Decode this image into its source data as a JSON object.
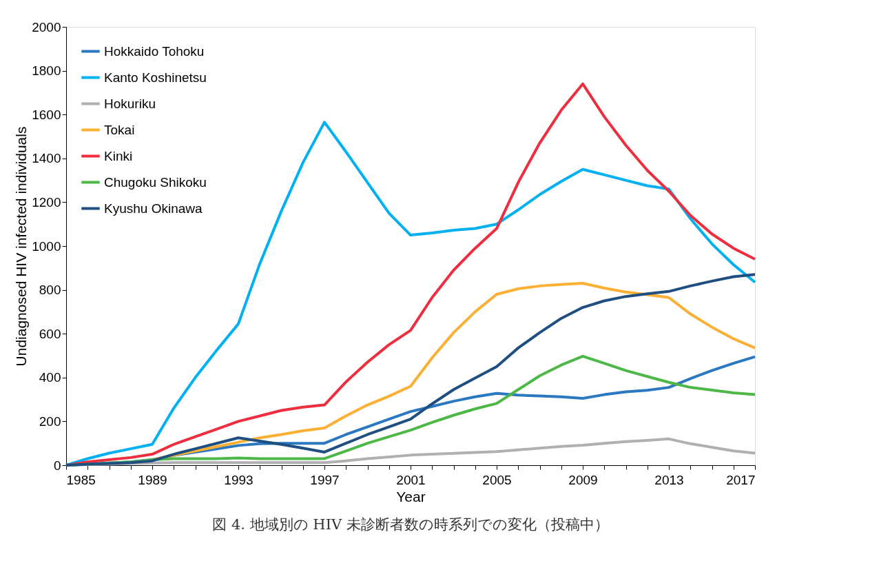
{
  "chart_data": {
    "type": "line",
    "xlabel": "Year",
    "ylabel": "Undiagnosed  HIV infected individuals",
    "annotations": [
      "図 4.  地域別の HIV 未診断者数の時系列での変化（投稿中）"
    ],
    "x": [
      1985,
      1986,
      1987,
      1988,
      1989,
      1990,
      1991,
      1992,
      1993,
      1994,
      1995,
      1996,
      1997,
      1998,
      1999,
      2000,
      2001,
      2002,
      2003,
      2004,
      2005,
      2006,
      2007,
      2008,
      2009,
      2010,
      2011,
      2012,
      2013,
      2014,
      2015,
      2016,
      2017
    ],
    "series": [
      {
        "name": "Hokkaido Tohoku",
        "color": "#2a78c0",
        "values": [
          0,
          5,
          10,
          15,
          25,
          45,
          60,
          75,
          90,
          98,
          100,
          100,
          100,
          140,
          175,
          210,
          245,
          268,
          292,
          312,
          328,
          320,
          316,
          312,
          305,
          322,
          335,
          342,
          355,
          395,
          432,
          465,
          495
        ]
      },
      {
        "name": "Kanto Koshinetsu",
        "color": "#00b0f0",
        "values": [
          0,
          30,
          55,
          75,
          95,
          260,
          400,
          525,
          645,
          920,
          1160,
          1380,
          1565,
          1430,
          1290,
          1150,
          1050,
          1060,
          1072,
          1080,
          1100,
          1165,
          1235,
          1295,
          1350,
          1325,
          1300,
          1275,
          1260,
          1125,
          1010,
          915,
          835
        ]
      },
      {
        "name": "Hokuriku",
        "color": "#b0b0b4",
        "values": [
          0,
          3,
          5,
          8,
          10,
          12,
          12,
          12,
          12,
          12,
          12,
          12,
          12,
          20,
          30,
          38,
          46,
          50,
          54,
          58,
          62,
          70,
          78,
          86,
          91,
          100,
          108,
          113,
          120,
          98,
          82,
          65,
          55
        ]
      },
      {
        "name": "Tokai",
        "color": "#fbb034",
        "values": [
          null,
          null,
          null,
          null,
          25,
          45,
          65,
          85,
          105,
          125,
          140,
          157,
          170,
          225,
          275,
          315,
          360,
          490,
          605,
          700,
          780,
          805,
          818,
          825,
          830,
          808,
          790,
          778,
          765,
          690,
          630,
          577,
          535
        ]
      },
      {
        "name": "Kinki",
        "color": "#ee2e3f",
        "values": [
          0,
          15,
          25,
          35,
          50,
          95,
          130,
          165,
          200,
          225,
          250,
          265,
          275,
          380,
          470,
          550,
          615,
          765,
          890,
          990,
          1080,
          1290,
          1470,
          1620,
          1740,
          1590,
          1460,
          1345,
          1250,
          1140,
          1055,
          990,
          940
        ]
      },
      {
        "name": "Chugoku Shikoku",
        "color": "#4db848",
        "values": [
          0,
          5,
          10,
          15,
          25,
          30,
          30,
          30,
          33,
          30,
          30,
          30,
          30,
          65,
          100,
          130,
          160,
          195,
          228,
          257,
          282,
          345,
          408,
          457,
          497,
          465,
          432,
          405,
          378,
          355,
          343,
          330,
          322
        ]
      },
      {
        "name": "Kyushu Okinawa",
        "color": "#1f4e80",
        "values": [
          0,
          5,
          8,
          12,
          20,
          50,
          75,
          100,
          125,
          110,
          95,
          78,
          60,
          100,
          140,
          175,
          210,
          280,
          345,
          398,
          450,
          535,
          605,
          670,
          720,
          750,
          770,
          782,
          793,
          818,
          840,
          860,
          870
        ]
      }
    ],
    "xlim": [
      1985,
      2017
    ],
    "xticks": [
      1985,
      {
        "value": 1986,
        "label": null
      },
      {
        "value": 1987,
        "label": null
      },
      {
        "value": 1988,
        "label": null
      },
      1989,
      {
        "value": 1990,
        "label": null
      },
      {
        "value": 1991,
        "label": null
      },
      {
        "value": 1992,
        "label": null
      },
      1993,
      {
        "value": 1994,
        "label": null
      },
      {
        "value": 1995,
        "label": null
      },
      {
        "value": 1996,
        "label": null
      },
      1997,
      {
        "value": 1998,
        "label": null
      },
      {
        "value": 1999,
        "label": null
      },
      {
        "value": 2000,
        "label": null
      },
      2001,
      {
        "value": 2002,
        "label": null
      },
      {
        "value": 2003,
        "label": null
      },
      {
        "value": 2004,
        "label": null
      },
      2005,
      {
        "value": 2006,
        "label": null
      },
      {
        "value": 2007,
        "label": null
      },
      {
        "value": 2008,
        "label": null
      },
      2009,
      {
        "value": 2010,
        "label": null
      },
      {
        "value": 2011,
        "label": null
      },
      {
        "value": 2012,
        "label": null
      },
      2013,
      {
        "value": 2014,
        "label": null
      },
      {
        "value": 2015,
        "label": null
      },
      {
        "value": 2016,
        "label": null
      },
      2017
    ],
    "ylim": [
      0,
      2000
    ],
    "yticks": [
      0,
      200,
      400,
      600,
      800,
      1000,
      1200,
      1400,
      1600,
      1800,
      2000
    ],
    "grid": false,
    "legend": "top left",
    "marker": "none",
    "line_style": "solid"
  }
}
